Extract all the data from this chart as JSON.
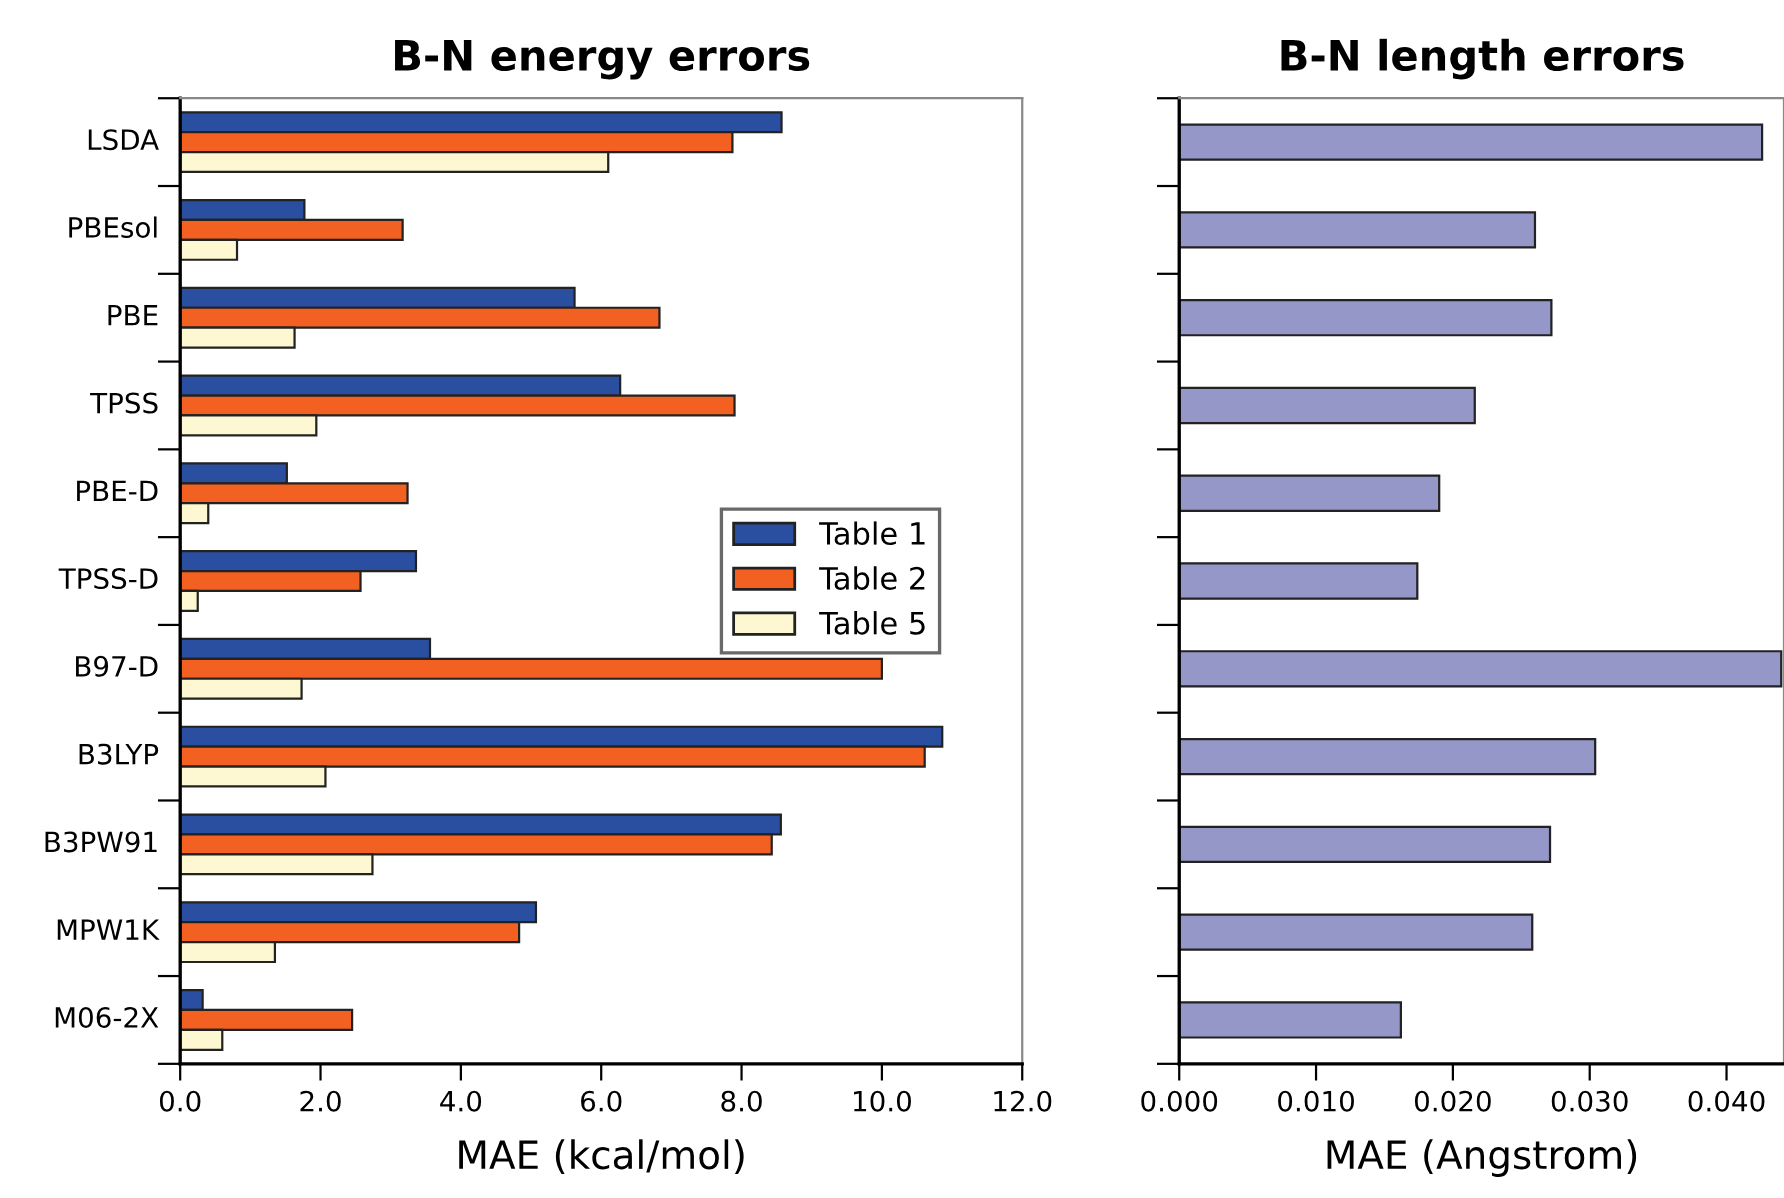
{
  "chart_data": [
    {
      "type": "bar",
      "orientation": "horizontal",
      "title": "B-N energy errors",
      "xlabel": "MAE (kcal/mol)",
      "categories": [
        "LSDA",
        "PBEsol",
        "PBE",
        "TPSS",
        "PBE-D",
        "TPSS-D",
        "B97-D",
        "B3LYP",
        "B3PW91",
        "MPW1K",
        "M06-2X"
      ],
      "series": [
        {
          "name": "Table 1",
          "color": "#2a4fa0",
          "values": [
            8.57,
            1.77,
            5.62,
            6.27,
            1.52,
            3.36,
            3.56,
            10.86,
            8.56,
            5.07,
            0.32
          ]
        },
        {
          "name": "Table 2",
          "color": "#f26122",
          "values": [
            7.87,
            3.17,
            6.83,
            7.9,
            3.24,
            2.57,
            10.0,
            10.61,
            8.43,
            4.83,
            2.45
          ]
        },
        {
          "name": "Table 5",
          "color": "#fdf8d2",
          "values": [
            6.1,
            0.81,
            1.63,
            1.94,
            0.4,
            0.25,
            1.73,
            2.07,
            2.74,
            1.35,
            0.6
          ]
        }
      ],
      "xlim": [
        0,
        12
      ],
      "xticks": [
        {
          "value": 0,
          "label": "0.0"
        },
        {
          "value": 2,
          "label": "2.0"
        },
        {
          "value": 4,
          "label": "4.0"
        },
        {
          "value": 6,
          "label": "6.0"
        },
        {
          "value": 8,
          "label": "8.0"
        },
        {
          "value": 10,
          "label": "10.0"
        },
        {
          "value": 12,
          "label": "12.0"
        }
      ],
      "legend": "right"
    },
    {
      "type": "bar",
      "orientation": "horizontal",
      "title": "B-N length errors",
      "xlabel": "MAE (Angstrom)",
      "categories": [
        null,
        null,
        null,
        null,
        null,
        null,
        null,
        null,
        null,
        null,
        null
      ],
      "series": [
        {
          "color": "#9597c9",
          "values": [
            0.0426,
            0.026,
            0.0272,
            0.0216,
            0.019,
            0.0174,
            0.044,
            0.0304,
            0.0271,
            0.0258,
            0.0162
          ]
        }
      ],
      "xlim": [
        0,
        0.0442
      ],
      "xticks": [
        {
          "value": 0,
          "label": "0.000"
        },
        {
          "value": 0.01,
          "label": "0.010"
        },
        {
          "value": 0.02,
          "label": "0.020"
        },
        {
          "value": 0.03,
          "label": "0.030"
        },
        {
          "value": 0.04,
          "label": "0.040"
        }
      ],
      "tick_labels": "x"
    }
  ]
}
